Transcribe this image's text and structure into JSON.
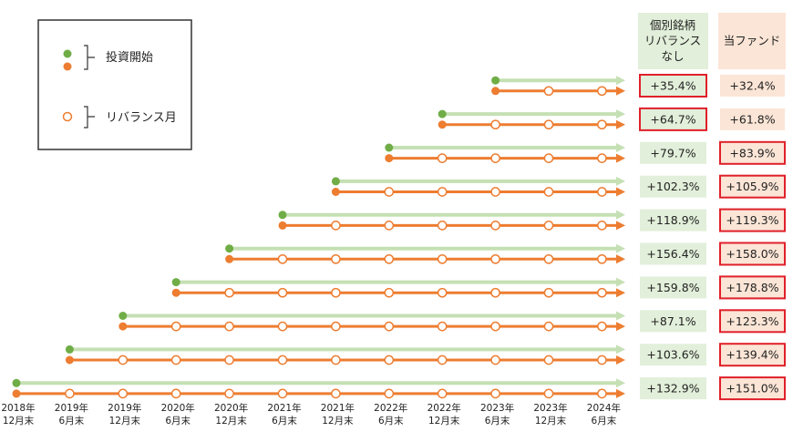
{
  "legend": {
    "start_label": "投資開始",
    "rebalance_label": "リバランス月"
  },
  "columns": {
    "individual_header": [
      "個別銘柄",
      "リバランス",
      "なし"
    ],
    "fund_header": "当ファンド"
  },
  "x_axis": [
    [
      "2018年",
      "12月末"
    ],
    [
      "2019年",
      "6月末"
    ],
    [
      "2019年",
      "12月末"
    ],
    [
      "2020年",
      "6月末"
    ],
    [
      "2020年",
      "12月末"
    ],
    [
      "2021年",
      "6月末"
    ],
    [
      "2021年",
      "12月末"
    ],
    [
      "2022年",
      "6月末"
    ],
    [
      "2022年",
      "12月末"
    ],
    [
      "2023年",
      "6月末"
    ],
    [
      "2023年",
      "12月末"
    ],
    [
      "2024年",
      "6月末"
    ]
  ],
  "rows": [
    {
      "start_index": 9,
      "individual": "+35.4%",
      "fund": "+32.4%",
      "highlight": "individual"
    },
    {
      "start_index": 8,
      "individual": "+64.7%",
      "fund": "+61.8%",
      "highlight": "individual"
    },
    {
      "start_index": 7,
      "individual": "+79.7%",
      "fund": "+83.9%",
      "highlight": "fund"
    },
    {
      "start_index": 6,
      "individual": "+102.3%",
      "fund": "+105.9%",
      "highlight": "fund"
    },
    {
      "start_index": 5,
      "individual": "+118.9%",
      "fund": "+119.3%",
      "highlight": "fund"
    },
    {
      "start_index": 4,
      "individual": "+156.4%",
      "fund": "+158.0%",
      "highlight": "fund"
    },
    {
      "start_index": 3,
      "individual": "+159.8%",
      "fund": "+178.8%",
      "highlight": "fund"
    },
    {
      "start_index": 2,
      "individual": "+87.1%",
      "fund": "+123.3%",
      "highlight": "fund"
    },
    {
      "start_index": 1,
      "individual": "+103.6%",
      "fund": "+139.4%",
      "highlight": "fund"
    },
    {
      "start_index": 0,
      "individual": "+132.9%",
      "fund": "+151.0%",
      "highlight": "fund"
    }
  ],
  "colors": {
    "green_dot": "#70ad47",
    "green_line": "#c5e0b4",
    "orange": "#ed7d31",
    "individual_bg": "#e2efda",
    "fund_bg": "#fbe5d6",
    "highlight_border": "#e0202a"
  }
}
